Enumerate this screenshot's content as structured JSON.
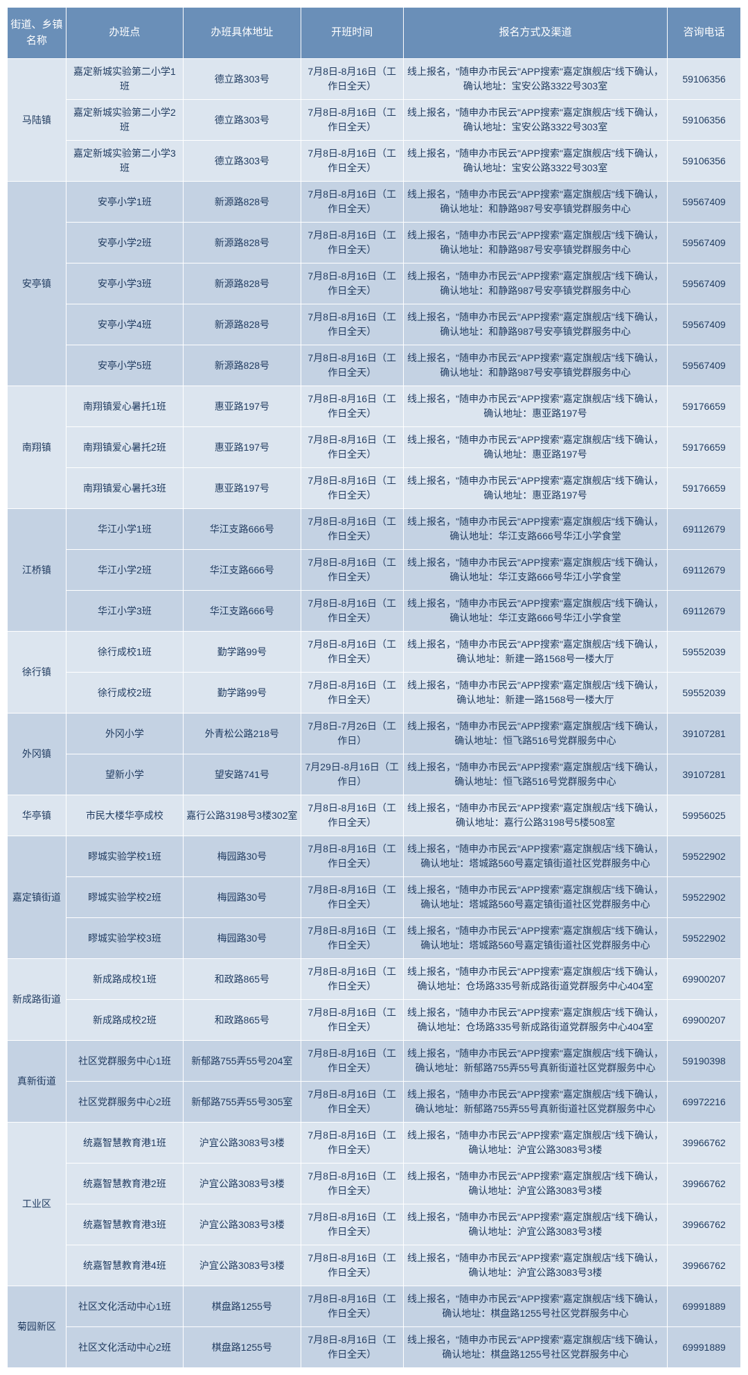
{
  "headers": {
    "town": "街道、乡镇\n名称",
    "site": "办班点",
    "addr": "办班具体地址",
    "time": "开班时间",
    "reg": "报名方式及渠道",
    "tel": "咨询电话"
  },
  "colors": {
    "header_bg": "#6a8fb8",
    "header_fg": "#ffffff",
    "row_light": "#dce5ef",
    "row_dark": "#c4d2e3",
    "border": "#ffffff",
    "text": "#1f3a5f"
  },
  "towns": [
    {
      "name": "马陆镇",
      "shade": "light",
      "rows": [
        {
          "site": "嘉定新城实验第二小学1班",
          "addr": "德立路303号",
          "time": "7月8日-8月16日（工作日全天）",
          "reg": "线上报名，\"随申办市民云\"APP搜索\"嘉定旗舰店\"线下确认，确认地址：宝安公路3322号303室",
          "tel": "59106356"
        },
        {
          "site": "嘉定新城实验第二小学2班",
          "addr": "德立路303号",
          "time": "7月8日-8月16日（工作日全天）",
          "reg": "线上报名，\"随申办市民云\"APP搜索\"嘉定旗舰店\"线下确认，确认地址：宝安公路3322号303室",
          "tel": "59106356"
        },
        {
          "site": "嘉定新城实验第二小学3班",
          "addr": "德立路303号",
          "time": "7月8日-8月16日（工作日全天）",
          "reg": "线上报名，\"随申办市民云\"APP搜索\"嘉定旗舰店\"线下确认，确认地址：宝安公路3322号303室",
          "tel": "59106356"
        }
      ]
    },
    {
      "name": "安亭镇",
      "shade": "dark",
      "rows": [
        {
          "site": "安亭小学1班",
          "addr": "新源路828号",
          "time": "7月8日-8月16日（工作日全天）",
          "reg": "线上报名，\"随申办市民云\"APP搜索\"嘉定旗舰店\"线下确认，确认地址：和静路987号安亭镇党群服务中心",
          "tel": "59567409"
        },
        {
          "site": "安亭小学2班",
          "addr": "新源路828号",
          "time": "7月8日-8月16日（工作日全天）",
          "reg": "线上报名，\"随申办市民云\"APP搜索\"嘉定旗舰店\"线下确认，确认地址：和静路987号安亭镇党群服务中心",
          "tel": "59567409"
        },
        {
          "site": "安亭小学3班",
          "addr": "新源路828号",
          "time": "7月8日-8月16日（工作日全天）",
          "reg": "线上报名，\"随申办市民云\"APP搜索\"嘉定旗舰店\"线下确认，确认地址：和静路987号安亭镇党群服务中心",
          "tel": "59567409"
        },
        {
          "site": "安亭小学4班",
          "addr": "新源路828号",
          "time": "7月8日-8月16日（工作日全天）",
          "reg": "线上报名，\"随申办市民云\"APP搜索\"嘉定旗舰店\"线下确认，确认地址：和静路987号安亭镇党群服务中心",
          "tel": "59567409"
        },
        {
          "site": "安亭小学5班",
          "addr": "新源路828号",
          "time": "7月8日-8月16日（工作日全天）",
          "reg": "线上报名，\"随申办市民云\"APP搜索\"嘉定旗舰店\"线下确认，确认地址：和静路987号安亭镇党群服务中心",
          "tel": "59567409"
        }
      ]
    },
    {
      "name": "南翔镇",
      "shade": "light",
      "rows": [
        {
          "site": "南翔镇爱心暑托1班",
          "addr": "惠亚路197号",
          "time": "7月8日-8月16日（工作日全天）",
          "reg": "线上报名，\"随申办市民云\"APP搜索\"嘉定旗舰店\"线下确认，确认地址：惠亚路197号",
          "tel": "59176659"
        },
        {
          "site": "南翔镇爱心暑托2班",
          "addr": "惠亚路197号",
          "time": "7月8日-8月16日（工作日全天）",
          "reg": "线上报名，\"随申办市民云\"APP搜索\"嘉定旗舰店\"线下确认，确认地址：惠亚路197号",
          "tel": "59176659"
        },
        {
          "site": "南翔镇爱心暑托3班",
          "addr": "惠亚路197号",
          "time": "7月8日-8月16日（工作日全天）",
          "reg": "线上报名，\"随申办市民云\"APP搜索\"嘉定旗舰店\"线下确认，确认地址：惠亚路197号",
          "tel": "59176659"
        }
      ]
    },
    {
      "name": "江桥镇",
      "shade": "dark",
      "rows": [
        {
          "site": "华江小学1班",
          "addr": "华江支路666号",
          "time": "7月8日-8月16日（工作日全天）",
          "reg": "线上报名，\"随申办市民云\"APP搜索\"嘉定旗舰店\"线下确认，确认地址：华江支路666号华江小学食堂",
          "tel": "69112679"
        },
        {
          "site": "华江小学2班",
          "addr": "华江支路666号",
          "time": "7月8日-8月16日（工作日全天）",
          "reg": "线上报名，\"随申办市民云\"APP搜索\"嘉定旗舰店\"线下确认，确认地址：华江支路666号华江小学食堂",
          "tel": "69112679"
        },
        {
          "site": "华江小学3班",
          "addr": "华江支路666号",
          "time": "7月8日-8月16日（工作日全天）",
          "reg": "线上报名，\"随申办市民云\"APP搜索\"嘉定旗舰店\"线下确认，确认地址：华江支路666号华江小学食堂",
          "tel": "69112679"
        }
      ]
    },
    {
      "name": "徐行镇",
      "shade": "light",
      "rows": [
        {
          "site": "徐行成校1班",
          "addr": "勤学路99号",
          "time": "7月8日-8月16日（工作日全天）",
          "reg": "线上报名，\"随申办市民云\"APP搜索\"嘉定旗舰店\"线下确认，确认地址：新建一路1568号一楼大厅",
          "tel": "59552039"
        },
        {
          "site": "徐行成校2班",
          "addr": "勤学路99号",
          "time": "7月8日-8月16日（工作日全天）",
          "reg": "线上报名，\"随申办市民云\"APP搜索\"嘉定旗舰店\"线下确认，确认地址：新建一路1568号一楼大厅",
          "tel": "59552039"
        }
      ]
    },
    {
      "name": "外冈镇",
      "shade": "dark",
      "rows": [
        {
          "site": "外冈小学",
          "addr": "外青松公路218号",
          "time": "7月8日-7月26日（工作日）",
          "reg": "线上报名，\"随申办市民云\"APP搜索\"嘉定旗舰店\"线下确认，确认地址：恒飞路516号党群服务中心",
          "tel": "39107281"
        },
        {
          "site": "望新小学",
          "addr": "望安路741号",
          "time": "7月29日-8月16日（工作日）",
          "reg": "线上报名，\"随申办市民云\"APP搜索\"嘉定旗舰店\"线下确认，确认地址：恒飞路516号党群服务中心",
          "tel": "39107281"
        }
      ]
    },
    {
      "name": "华亭镇",
      "shade": "light",
      "rows": [
        {
          "site": "市民大楼华亭成校",
          "addr": "嘉行公路3198号3楼302室",
          "time": "7月8日-8月16日（工作日全天）",
          "reg": "线上报名，\"随申办市民云\"APP搜索\"嘉定旗舰店\"线下确认，确认地址：嘉行公路3198号5楼508室",
          "tel": "59956025"
        }
      ]
    },
    {
      "name": "嘉定镇街道",
      "shade": "dark",
      "rows": [
        {
          "site": "疁城实验学校1班",
          "addr": "梅园路30号",
          "time": "7月8日-8月16日（工作日全天）",
          "reg": "线上报名，\"随申办市民云\"APP搜索\"嘉定旗舰店\"线下确认，确认地址：塔城路560号嘉定镇街道社区党群服务中心",
          "tel": "59522902"
        },
        {
          "site": "疁城实验学校2班",
          "addr": "梅园路30号",
          "time": "7月8日-8月16日（工作日全天）",
          "reg": "线上报名，\"随申办市民云\"APP搜索\"嘉定旗舰店\"线下确认，确认地址：塔城路560号嘉定镇街道社区党群服务中心",
          "tel": "59522902"
        },
        {
          "site": "疁城实验学校3班",
          "addr": "梅园路30号",
          "time": "7月8日-8月16日（工作日全天）",
          "reg": "线上报名，\"随申办市民云\"APP搜索\"嘉定旗舰店\"线下确认，确认地址：塔城路560号嘉定镇街道社区党群服务中心",
          "tel": "59522902"
        }
      ]
    },
    {
      "name": "新成路街道",
      "shade": "light",
      "rows": [
        {
          "site": "新成路成校1班",
          "addr": "和政路865号",
          "time": "7月8日-8月16日（工作日全天）",
          "reg": "线上报名，\"随申办市民云\"APP搜索\"嘉定旗舰店\"线下确认，确认地址：仓场路335号新成路街道党群服务中心404室",
          "tel": "69900207"
        },
        {
          "site": "新成路成校2班",
          "addr": "和政路865号",
          "time": "7月8日-8月16日（工作日全天）",
          "reg": "线上报名，\"随申办市民云\"APP搜索\"嘉定旗舰店\"线下确认，确认地址：仓场路335号新成路街道党群服务中心404室",
          "tel": "69900207"
        }
      ]
    },
    {
      "name": "真新街道",
      "shade": "dark",
      "rows": [
        {
          "site": "社区党群服务中心1班",
          "addr": "新郁路755弄55号204室",
          "time": "7月8日-8月16日（工作日全天）",
          "reg": "线上报名，\"随申办市民云\"APP搜索\"嘉定旗舰店\"线下确认，确认地址：新郁路755弄55号真新街道社区党群服务中心",
          "tel": "59190398"
        },
        {
          "site": "社区党群服务中心2班",
          "addr": "新郁路755弄55号305室",
          "time": "7月8日-8月16日（工作日全天）",
          "reg": "线上报名，\"随申办市民云\"APP搜索\"嘉定旗舰店\"线下确认，确认地址：新郁路755弄55号真新街道社区党群服务中心",
          "tel": "69972216"
        }
      ]
    },
    {
      "name": "工业区",
      "shade": "light",
      "rows": [
        {
          "site": "统嘉智慧教育港1班",
          "addr": "沪宜公路3083号3楼",
          "time": "7月8日-8月16日（工作日全天）",
          "reg": "线上报名，\"随申办市民云\"APP搜索\"嘉定旗舰店\"线下确认，确认地址：沪宜公路3083号3楼",
          "tel": "39966762"
        },
        {
          "site": "统嘉智慧教育港2班",
          "addr": "沪宜公路3083号3楼",
          "time": "7月8日-8月16日（工作日全天）",
          "reg": "线上报名，\"随申办市民云\"APP搜索\"嘉定旗舰店\"线下确认，确认地址：沪宜公路3083号3楼",
          "tel": "39966762"
        },
        {
          "site": "统嘉智慧教育港3班",
          "addr": "沪宜公路3083号3楼",
          "time": "7月8日-8月16日（工作日全天）",
          "reg": "线上报名，\"随申办市民云\"APP搜索\"嘉定旗舰店\"线下确认，确认地址：沪宜公路3083号3楼",
          "tel": "39966762"
        },
        {
          "site": "统嘉智慧教育港4班",
          "addr": "沪宜公路3083号3楼",
          "time": "7月8日-8月16日（工作日全天）",
          "reg": "线上报名，\"随申办市民云\"APP搜索\"嘉定旗舰店\"线下确认，确认地址：沪宜公路3083号3楼",
          "tel": "39966762"
        }
      ]
    },
    {
      "name": "菊园新区",
      "shade": "dark",
      "rows": [
        {
          "site": "社区文化活动中心1班",
          "addr": "棋盘路1255号",
          "time": "7月8日-8月16日（工作日全天）",
          "reg": "线上报名，\"随申办市民云\"APP搜索\"嘉定旗舰店\"线下确认，确认地址：棋盘路1255号社区党群服务中心",
          "tel": "69991889"
        },
        {
          "site": "社区文化活动中心2班",
          "addr": "棋盘路1255号",
          "time": "7月8日-8月16日（工作日全天）",
          "reg": "线上报名，\"随申办市民云\"APP搜索\"嘉定旗舰店\"线下确认，确认地址：棋盘路1255号社区党群服务中心",
          "tel": "69991889"
        }
      ]
    }
  ]
}
